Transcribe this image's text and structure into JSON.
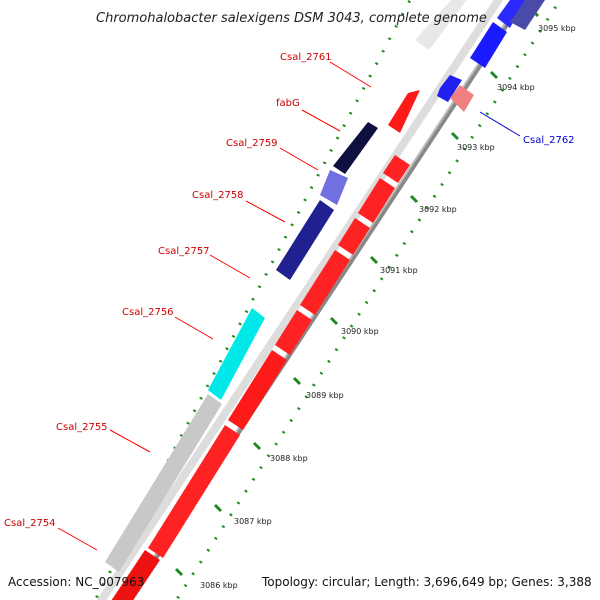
{
  "title": "Chromohalobacter salexigens DSM 3043, complete genome",
  "accession": "Accession: NC_007963",
  "topology": "Topology: circular; Length: 3,696,649 bp; Genes: 3,388",
  "colors": {
    "forward": "#ff0000",
    "reverse": "#0000ff",
    "pseudo": "#c8c8c8",
    "highlight_a": "#00e8e8",
    "highlight_b": "#7070e0",
    "highlight_c": "#202090",
    "pale": "#f08080",
    "tick_dot": "#228822"
  },
  "gene_labels": [
    {
      "id": "Csal_2761",
      "text": "Csal_2761",
      "strand": "forward"
    },
    {
      "id": "fabG",
      "text": "fabG",
      "strand": "forward"
    },
    {
      "id": "Csal_2759",
      "text": "Csal_2759",
      "strand": "forward"
    },
    {
      "id": "Csal_2758",
      "text": "Csal_2758",
      "strand": "forward"
    },
    {
      "id": "Csal_2757",
      "text": "Csal_2757",
      "strand": "forward"
    },
    {
      "id": "Csal_2756",
      "text": "Csal_2756",
      "strand": "forward"
    },
    {
      "id": "Csal_2755",
      "text": "Csal_2755",
      "strand": "forward"
    },
    {
      "id": "Csal_2754",
      "text": "Csal_2754",
      "strand": "forward"
    },
    {
      "id": "Csal_2762",
      "text": "Csal_2762",
      "strand": "reverse"
    }
  ],
  "ticks": [
    {
      "text": "3095 kbp"
    },
    {
      "text": "3094 kbp"
    },
    {
      "text": "3093 kbp"
    },
    {
      "text": "3092 kbp"
    },
    {
      "text": "3091 kbp"
    },
    {
      "text": "3090 kbp"
    },
    {
      "text": "3089 kbp"
    },
    {
      "text": "3088 kbp"
    },
    {
      "text": "3087 kbp"
    },
    {
      "text": "3086 kbp"
    }
  ]
}
